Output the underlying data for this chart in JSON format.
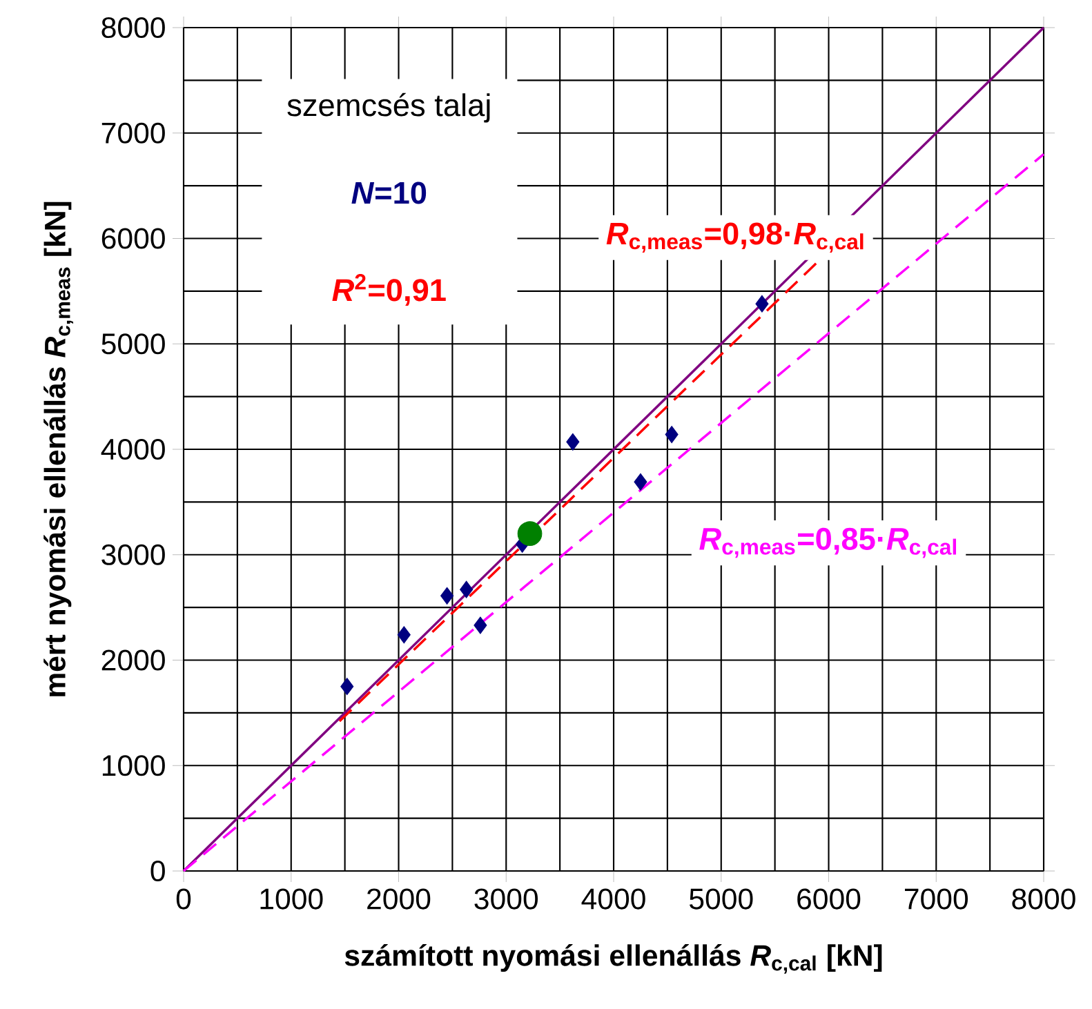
{
  "chart_data": {
    "type": "scatter",
    "xlabel": "számított nyomási ellenállás  *R*$_{c,cal}$  [kN]",
    "ylabel": "mért nyomási ellenállás  *R*$_{c,meas}$  [kN]",
    "xlim": [
      0,
      8000
    ],
    "ylim": [
      0,
      8000
    ],
    "xticks": [
      0,
      1000,
      2000,
      3000,
      4000,
      5000,
      6000,
      7000,
      8000
    ],
    "yticks": [
      0,
      1000,
      2000,
      3000,
      4000,
      5000,
      6000,
      7000,
      8000
    ],
    "grid": true,
    "annotations": [
      "szemcsés talaj",
      "*N*=10",
      "*R*$^{2}$=0,91",
      "*R*$_{c,meas}$=0,98·*R*$_{c,cal}$",
      "*R*$_{c,meas}$=0,85·*R*$_{c,cal}$"
    ],
    "series": [
      {
        "type": "line",
        "color": "#800080",
        "line_style": "solid",
        "marker": "none",
        "x": [
          0,
          8000
        ],
        "values": [
          0,
          8000
        ]
      },
      {
        "type": "line",
        "color": "#ff0000",
        "line_style": "dashed",
        "marker": "none",
        "x": [
          1450,
          5900
        ],
        "values": [
          1420,
          5780
        ]
      },
      {
        "type": "line",
        "color": "#ff00ff",
        "line_style": "dashed",
        "marker": "none",
        "x": [
          0,
          8000
        ],
        "values": [
          0,
          6800
        ]
      },
      {
        "color": "#000080",
        "marker": "diamond",
        "x": [
          1520,
          2050,
          2450,
          2630,
          2760,
          3150,
          3620,
          4250,
          4540,
          5380
        ],
        "values": [
          1750,
          2240,
          2610,
          2670,
          2330,
          3100,
          4070,
          3690,
          4140,
          5380
        ]
      },
      {
        "color": "#008000",
        "marker": "circle",
        "x": [
          3220
        ],
        "values": [
          3200
        ]
      }
    ]
  }
}
